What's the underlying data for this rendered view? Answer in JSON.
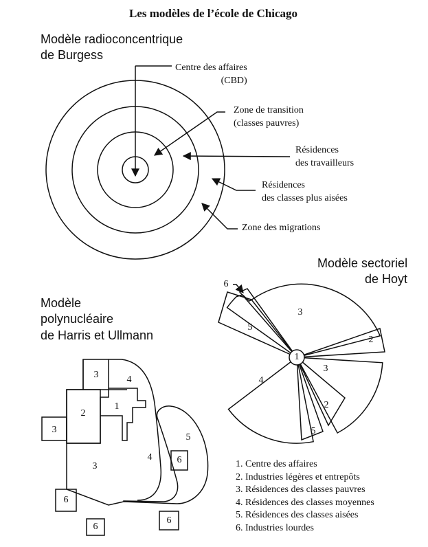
{
  "title": "Les modèles de l’école de Chicago",
  "burgess": {
    "title_line1": "Modèle radioconcentrique",
    "title_line2": "de Burgess",
    "zones": [
      {
        "line1": "Centre des affaires",
        "line2": "(CBD)"
      },
      {
        "line1": "Zone de transition",
        "line2": "(classes pauvres)"
      },
      {
        "line1": "Résidences",
        "line2": "des travailleurs"
      },
      {
        "line1": "Résidences",
        "line2": "des classes plus aisées"
      },
      {
        "line1": "Zone des migrations",
        "line2": ""
      }
    ]
  },
  "hoyt": {
    "title_line1": "Modèle sectoriel",
    "title_line2": "de Hoyt",
    "center": "1",
    "sector_numbers": [
      "6",
      "3",
      "5",
      "2",
      "4",
      "3",
      "2",
      "5"
    ]
  },
  "harris": {
    "title_line1": "Modèle",
    "title_line2": "polynucléaire",
    "title_line3": "de Harris et Ullmann",
    "region_numbers": [
      "3",
      "4",
      "1",
      "2",
      "3",
      "5",
      "3",
      "4",
      "6",
      "6",
      "6",
      "6"
    ]
  },
  "legend": [
    "1. Centre des affaires",
    "2. Industries légères et entrepôts",
    "3. Résidences des classes pauvres",
    "4. Résidences des classes moyennes",
    "5. Résidences des classes aisées",
    "6. Industries lourdes"
  ]
}
